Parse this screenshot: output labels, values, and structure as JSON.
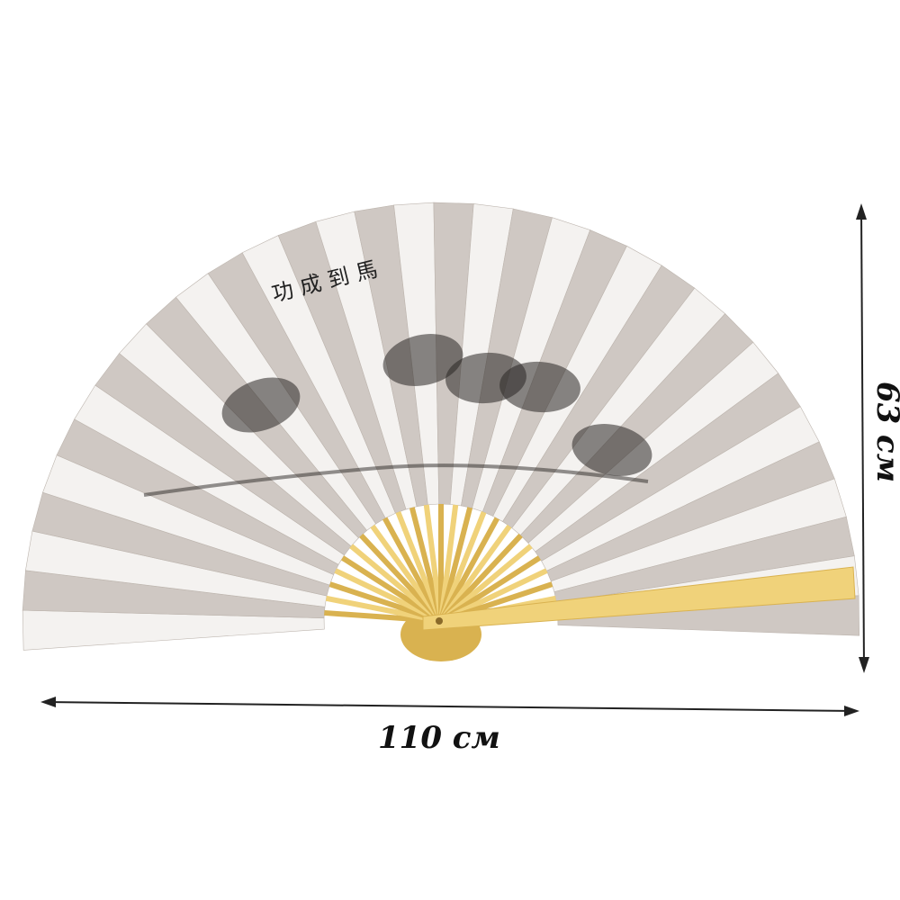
{
  "product": "folding wall fan with ink horse painting",
  "artwork_inscription": "功成到馬",
  "dimensions": {
    "width_label": "110 см",
    "height_label": "63 см"
  },
  "colors": {
    "paper_light": "#f4f2f0",
    "paper_dark": "#cfc8c3",
    "bamboo": "#f0d27a",
    "bamboo_dark": "#d9b250",
    "ink": "#2a2624",
    "arrow": "#222222"
  },
  "icons": {
    "width_arrow": "double-arrow-horizontal",
    "height_arrow": "double-arrow-vertical"
  }
}
